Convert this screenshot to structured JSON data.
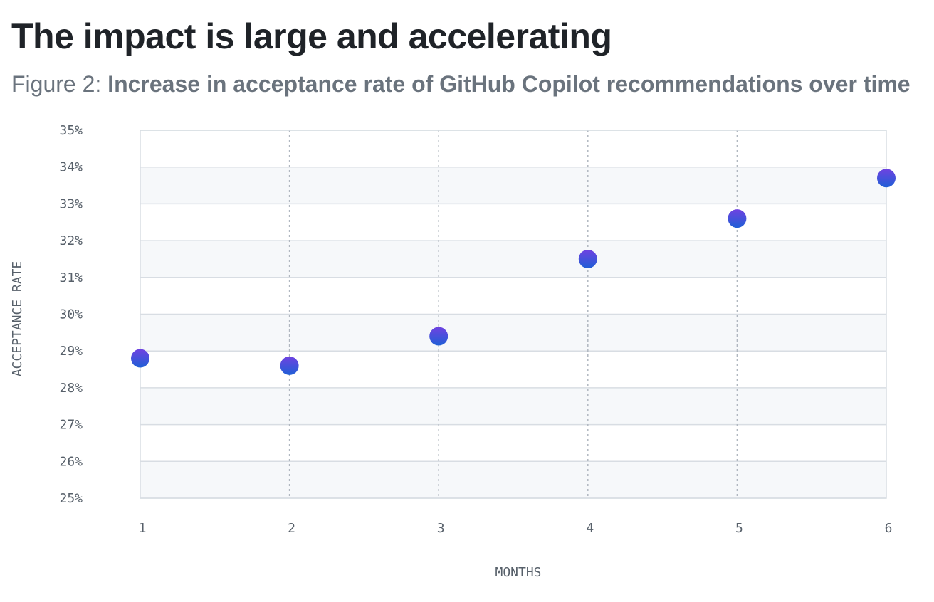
{
  "header": {
    "title": "The impact is large and accelerating",
    "figure_prefix": "Figure 2: ",
    "figure_title": "Increase in acceptance rate of GitHub Copilot recommendations over time"
  },
  "colors": {
    "point_top": "#6f42e1",
    "point_bottom": "#1f5fd6",
    "band": "#f6f8fa",
    "grid": "#d8dde3",
    "vgrid": "#b0b7c0"
  },
  "chart_data": {
    "type": "scatter",
    "title": "The impact is large and accelerating",
    "subtitle": "Figure 2: Increase in acceptance rate of GitHub Copilot recommendations over time",
    "xlabel": "MONTHS",
    "ylabel": "ACCEPTANCE RATE",
    "x": [
      1,
      2,
      3,
      4,
      5,
      6
    ],
    "y": [
      28.8,
      28.6,
      29.4,
      31.5,
      32.6,
      33.7
    ],
    "xlim": [
      1,
      6
    ],
    "ylim": [
      25,
      35
    ],
    "x_ticks": [
      "1",
      "2",
      "3",
      "4",
      "5",
      "6"
    ],
    "y_ticks": [
      "25%",
      "26%",
      "27%",
      "28%",
      "29%",
      "30%",
      "31%",
      "32%",
      "33%",
      "34%",
      "35%"
    ],
    "y_unit": "%",
    "grid": true,
    "legend": "none"
  }
}
